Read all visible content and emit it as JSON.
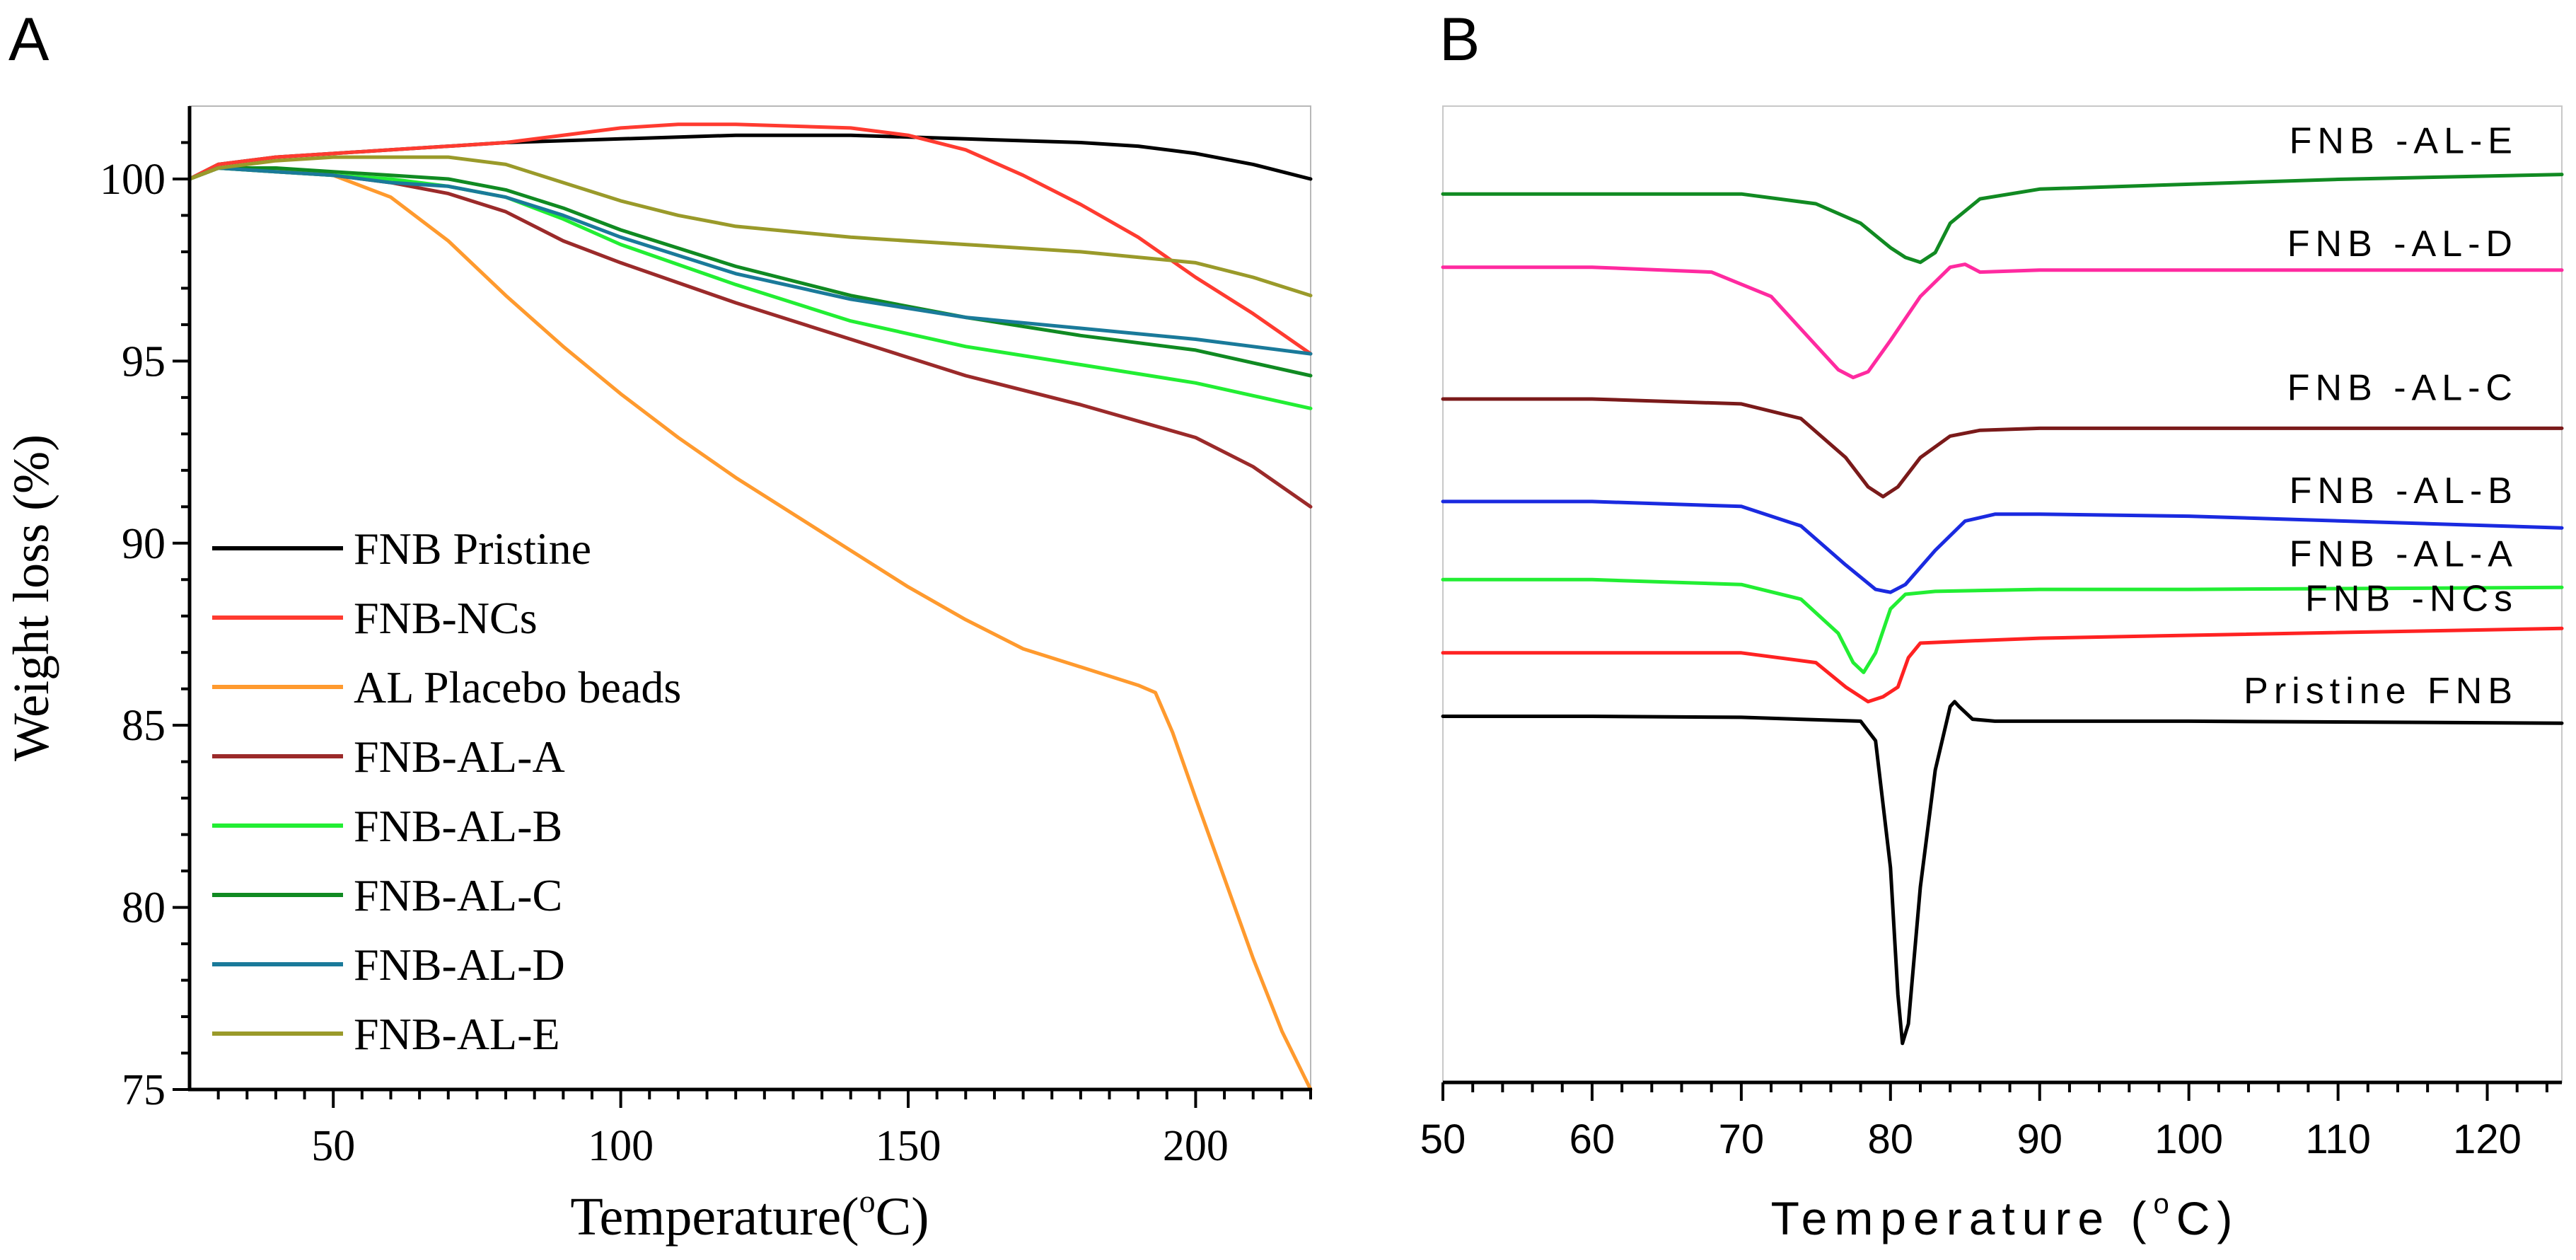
{
  "chart_data": [
    {
      "panel_label": "A",
      "type": "line",
      "xlabel": "Temperature(°C)",
      "xlabel_main": "Temperature(",
      "xlabel_sup": "o",
      "xlabel_tail": "C)",
      "ylabel": "Weight loss (%)",
      "xlim": [
        25,
        220
      ],
      "ylim": [
        75,
        102
      ],
      "xticks": [
        50,
        100,
        150,
        200
      ],
      "yticks": [
        75,
        80,
        85,
        90,
        95,
        100
      ],
      "legend_position": "lower-left",
      "series": [
        {
          "name": "FNB Pristine",
          "color": "#000000",
          "x": [
            25,
            30,
            40,
            60,
            80,
            100,
            120,
            140,
            160,
            180,
            190,
            200,
            210,
            220
          ],
          "y": [
            100.0,
            100.4,
            100.6,
            100.8,
            101.0,
            101.1,
            101.2,
            101.2,
            101.1,
            101.0,
            100.9,
            100.7,
            100.4,
            100.0
          ]
        },
        {
          "name": "FNB-NCs",
          "color": "#ff3b30",
          "x": [
            25,
            30,
            40,
            60,
            80,
            100,
            110,
            120,
            140,
            150,
            160,
            170,
            180,
            190,
            200,
            210,
            220
          ],
          "y": [
            100.0,
            100.4,
            100.6,
            100.8,
            101.0,
            101.4,
            101.5,
            101.5,
            101.4,
            101.2,
            100.8,
            100.1,
            99.3,
            98.4,
            97.3,
            96.3,
            95.2
          ]
        },
        {
          "name": "AL Placebo beads",
          "color": "#ff9a2e",
          "x": [
            25,
            30,
            40,
            50,
            60,
            70,
            80,
            90,
            100,
            110,
            120,
            130,
            140,
            150,
            160,
            170,
            180,
            190,
            193,
            196,
            200,
            205,
            210,
            215,
            220
          ],
          "y": [
            100.0,
            100.3,
            100.3,
            100.1,
            99.5,
            98.3,
            96.8,
            95.4,
            94.1,
            92.9,
            91.8,
            90.8,
            89.8,
            88.8,
            87.9,
            87.1,
            86.6,
            86.1,
            85.9,
            84.8,
            83.0,
            80.8,
            78.6,
            76.6,
            75.0
          ]
        },
        {
          "name": "FNB-AL-A",
          "color": "#9b2a2a",
          "x": [
            25,
            30,
            40,
            50,
            60,
            70,
            80,
            90,
            100,
            120,
            140,
            160,
            180,
            200,
            210,
            220
          ],
          "y": [
            100.0,
            100.3,
            100.2,
            100.1,
            99.9,
            99.6,
            99.1,
            98.3,
            97.7,
            96.6,
            95.6,
            94.6,
            93.8,
            92.9,
            92.1,
            91.0
          ]
        },
        {
          "name": "FNB-AL-B",
          "color": "#22ee33",
          "x": [
            25,
            30,
            40,
            50,
            60,
            70,
            80,
            90,
            100,
            120,
            140,
            160,
            180,
            200,
            220
          ],
          "y": [
            100.0,
            100.3,
            100.2,
            100.1,
            100.0,
            99.8,
            99.5,
            98.9,
            98.2,
            97.1,
            96.1,
            95.4,
            94.9,
            94.4,
            93.7
          ]
        },
        {
          "name": "FNB-AL-C",
          "color": "#108a22",
          "x": [
            25,
            30,
            40,
            50,
            60,
            70,
            80,
            90,
            100,
            120,
            140,
            160,
            180,
            200,
            220
          ],
          "y": [
            100.0,
            100.3,
            100.3,
            100.2,
            100.1,
            100.0,
            99.7,
            99.2,
            98.6,
            97.6,
            96.8,
            96.2,
            95.7,
            95.3,
            94.6
          ]
        },
        {
          "name": "FNB-AL-D",
          "color": "#1a7a9a",
          "x": [
            25,
            30,
            40,
            50,
            60,
            70,
            80,
            90,
            100,
            120,
            140,
            160,
            180,
            200,
            220
          ],
          "y": [
            100.0,
            100.3,
            100.2,
            100.1,
            99.9,
            99.8,
            99.5,
            99.0,
            98.4,
            97.4,
            96.7,
            96.2,
            95.9,
            95.6,
            95.2
          ]
        },
        {
          "name": "FNB-AL-E",
          "color": "#9a9a2a",
          "x": [
            25,
            30,
            40,
            50,
            60,
            70,
            80,
            90,
            100,
            110,
            120,
            140,
            160,
            180,
            200,
            210,
            220
          ],
          "y": [
            100.0,
            100.3,
            100.5,
            100.6,
            100.6,
            100.6,
            100.4,
            99.9,
            99.4,
            99.0,
            98.7,
            98.4,
            98.2,
            98.0,
            97.7,
            97.3,
            96.8
          ]
        }
      ]
    },
    {
      "panel_label": "B",
      "type": "line",
      "xlabel": "Temperature (°C)",
      "xlabel_main": "Temperature (",
      "xlabel_sup": "o",
      "xlabel_tail": "C)",
      "ylabel": "",
      "y_axis_visible": false,
      "xlim": [
        50,
        125
      ],
      "ylim": [
        0,
        10
      ],
      "xticks": [
        50,
        60,
        70,
        80,
        90,
        100,
        110,
        120
      ],
      "series": [
        {
          "name": "FNB -AL-E",
          "color": "#118a22",
          "x": [
            50,
            60,
            70,
            75,
            78,
            80,
            81,
            82,
            83,
            84,
            86,
            90,
            100,
            110,
            125
          ],
          "y": [
            9.1,
            9.1,
            9.1,
            9.0,
            8.8,
            8.55,
            8.45,
            8.4,
            8.5,
            8.8,
            9.05,
            9.15,
            9.2,
            9.25,
            9.3
          ]
        },
        {
          "name": "FNB -AL-D",
          "color": "#ff2aa0",
          "x": [
            50,
            60,
            68,
            72,
            75,
            76.5,
            77.5,
            78.5,
            80,
            82,
            84,
            85,
            86,
            90,
            100,
            125
          ],
          "y": [
            8.35,
            8.35,
            8.3,
            8.05,
            7.55,
            7.3,
            7.22,
            7.28,
            7.6,
            8.05,
            8.35,
            8.38,
            8.3,
            8.32,
            8.32,
            8.32
          ]
        },
        {
          "name": "FNB -AL-C",
          "color": "#7a1a1a",
          "x": [
            50,
            60,
            70,
            74,
            77,
            78.5,
            79.5,
            80.5,
            82,
            84,
            86,
            90,
            100,
            125
          ],
          "y": [
            7.0,
            7.0,
            6.95,
            6.8,
            6.4,
            6.1,
            6.0,
            6.1,
            6.4,
            6.62,
            6.68,
            6.7,
            6.7,
            6.7
          ]
        },
        {
          "name": "FNB -AL-B",
          "color": "#1a2ae0",
          "x": [
            50,
            60,
            70,
            74,
            77,
            79,
            80,
            81,
            83,
            85,
            87,
            90,
            100,
            125
          ],
          "y": [
            5.95,
            5.95,
            5.9,
            5.7,
            5.3,
            5.05,
            5.02,
            5.1,
            5.45,
            5.75,
            5.82,
            5.82,
            5.8,
            5.68
          ]
        },
        {
          "name": "FNB -AL-A",
          "color": "#22ee33",
          "x": [
            50,
            60,
            70,
            74,
            76.5,
            77.5,
            78.2,
            79,
            80,
            81,
            83,
            90,
            100,
            125
          ],
          "y": [
            5.15,
            5.15,
            5.1,
            4.95,
            4.6,
            4.3,
            4.2,
            4.4,
            4.85,
            5.0,
            5.03,
            5.05,
            5.05,
            5.07
          ]
        },
        {
          "name": "FNB -NCs",
          "color": "#ff2222",
          "x": [
            50,
            60,
            70,
            75,
            77,
            78.5,
            79.5,
            80.5,
            81.2,
            82,
            85,
            90,
            100,
            125
          ],
          "y": [
            4.4,
            4.4,
            4.4,
            4.3,
            4.05,
            3.9,
            3.95,
            4.05,
            4.35,
            4.5,
            4.52,
            4.55,
            4.58,
            4.65
          ]
        },
        {
          "name": "Pristine FNB",
          "color": "#000000",
          "x": [
            50,
            60,
            70,
            78,
            79,
            80,
            80.5,
            80.8,
            81.2,
            82,
            83,
            84,
            84.3,
            84.6,
            85.5,
            87,
            90,
            100,
            125
          ],
          "y": [
            3.75,
            3.75,
            3.74,
            3.7,
            3.5,
            2.2,
            0.9,
            0.4,
            0.6,
            2.0,
            3.2,
            3.85,
            3.9,
            3.85,
            3.72,
            3.7,
            3.7,
            3.7,
            3.68
          ]
        }
      ]
    }
  ]
}
